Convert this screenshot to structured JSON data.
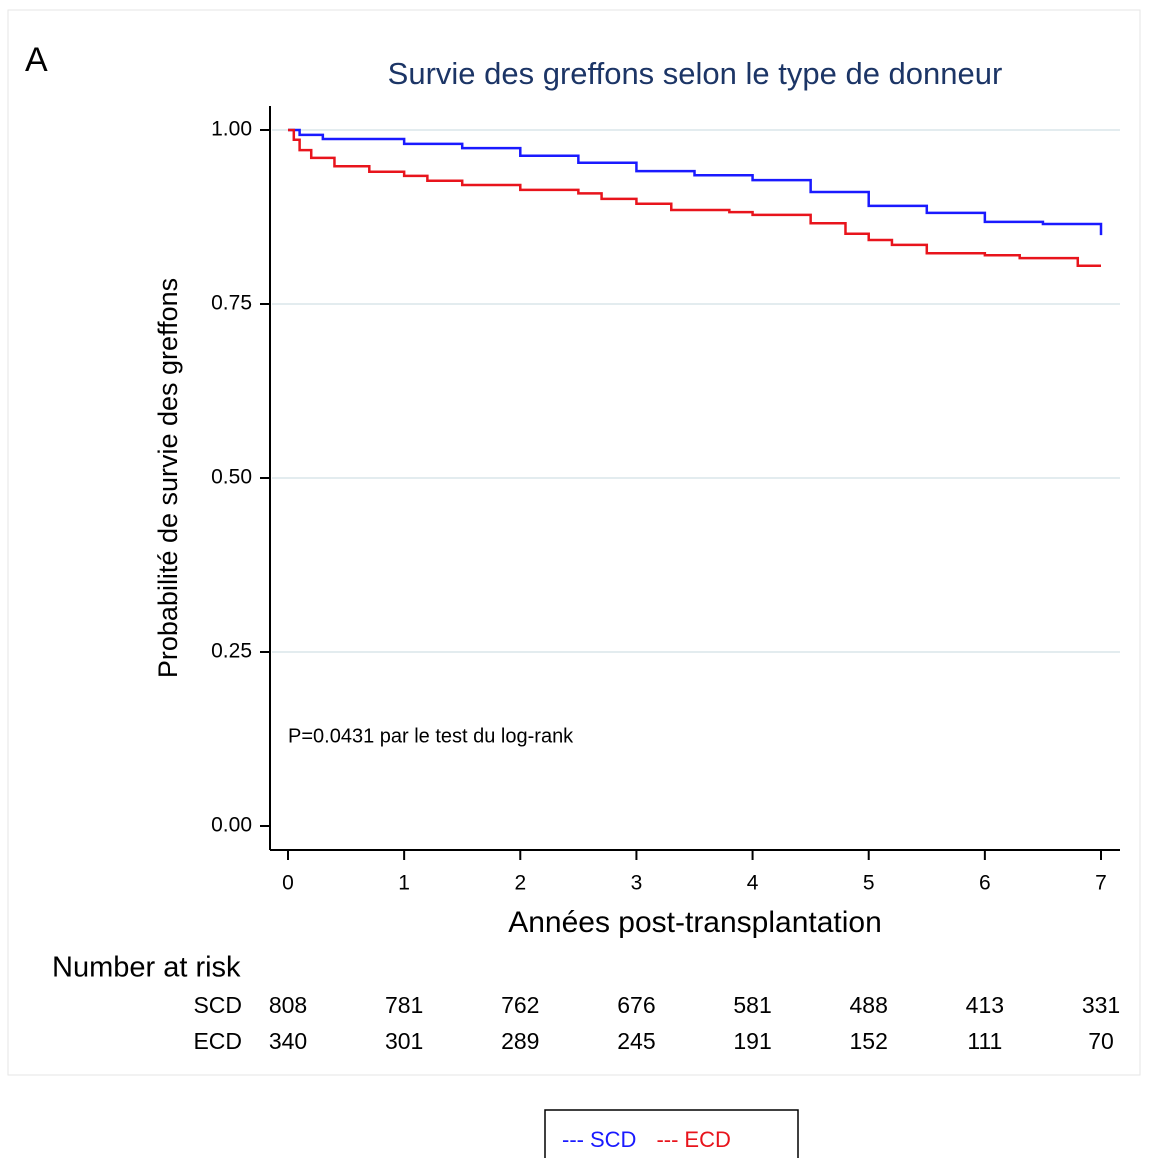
{
  "chart_data": {
    "type": "step",
    "panel_label": "A",
    "title": "Survie des greffons selon le type de donneur",
    "xlabel": "Années post-transplantation",
    "ylabel": "Probabilité de survie des greffons",
    "annotation": "P=0.0431 par le test du log-rank",
    "xlim": [
      0,
      7
    ],
    "xticks": [
      0,
      1,
      2,
      3,
      4,
      5,
      6,
      7
    ],
    "ylim": [
      0,
      1
    ],
    "yticks": [
      {
        "value": 0,
        "label": "0.00"
      },
      {
        "value": 0.25,
        "label": "0.25"
      },
      {
        "value": 0.5,
        "label": "0.50"
      },
      {
        "value": 0.75,
        "label": "0.75"
      },
      {
        "value": 1,
        "label": "1.00"
      }
    ],
    "grid": true,
    "legend_marker": "---",
    "series": [
      {
        "name": "SCD",
        "color": "#1a1aff",
        "x": [
          0,
          0.1,
          0.3,
          1,
          1.5,
          2,
          2.5,
          3,
          3.5,
          4,
          4.5,
          5,
          5.5,
          6,
          6.5,
          7
        ],
        "values": [
          1.0,
          0.993,
          0.987,
          0.98,
          0.974,
          0.963,
          0.953,
          0.941,
          0.935,
          0.928,
          0.911,
          0.891,
          0.881,
          0.868,
          0.865,
          0.849
        ]
      },
      {
        "name": "ECD",
        "color": "#e8141c",
        "x": [
          0,
          0.05,
          0.1,
          0.2,
          0.4,
          0.7,
          1,
          1.2,
          1.5,
          2,
          2.5,
          2.7,
          3,
          3.3,
          3.8,
          4,
          4.5,
          4.8,
          5,
          5.2,
          5.5,
          6,
          6.3,
          6.8,
          7
        ],
        "values": [
          1.0,
          0.986,
          0.971,
          0.96,
          0.948,
          0.94,
          0.934,
          0.927,
          0.921,
          0.914,
          0.909,
          0.901,
          0.894,
          0.885,
          0.882,
          0.878,
          0.866,
          0.851,
          0.842,
          0.835,
          0.823,
          0.82,
          0.816,
          0.805,
          0.805
        ]
      }
    ],
    "risk_table": {
      "title": "Number at risk",
      "rows": [
        {
          "name": "SCD",
          "values": [
            808,
            781,
            762,
            676,
            581,
            488,
            413,
            331
          ]
        },
        {
          "name": "ECD",
          "values": [
            340,
            301,
            289,
            245,
            191,
            152,
            111,
            70
          ]
        }
      ]
    }
  }
}
